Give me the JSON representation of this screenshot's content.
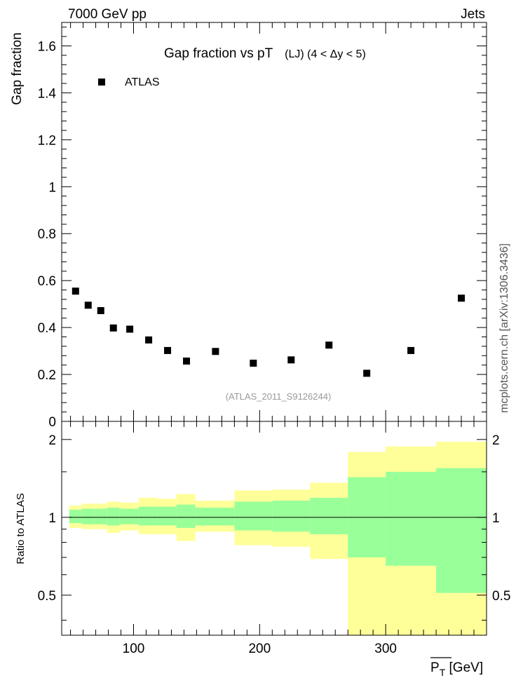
{
  "header": {
    "left_label": "7000 GeV pp",
    "right_label": "Jets"
  },
  "side_label": "mcplots.cern.ch [arXiv:1306.3436]",
  "chart_data": [
    {
      "type": "scatter",
      "title": "Gap fraction vs pT",
      "title_suffix": "(LJ) (4 < Δy < 5)",
      "ylabel": "Gap fraction",
      "ylim": [
        0,
        1.7
      ],
      "yticks": [
        0,
        0.2,
        0.4,
        0.6,
        0.8,
        1,
        1.2,
        1.4,
        1.6
      ],
      "ytick_labels": [
        "0",
        "0.2",
        "0.4",
        "0.6",
        "0.8",
        "1",
        "1.2",
        "1.4",
        "1.6"
      ],
      "xlim": [
        43,
        380
      ],
      "legend": {
        "placement": "top-left",
        "entries": [
          "ATLAS"
        ]
      },
      "watermark": "(ATLAS_2011_S9126244)",
      "series": [
        {
          "name": "ATLAS",
          "marker": "square",
          "color": "#000000",
          "x": [
            54,
            64,
            74,
            84,
            97,
            112,
            127,
            142,
            165,
            195,
            225,
            255,
            285,
            320,
            360
          ],
          "y": [
            0.555,
            0.495,
            0.472,
            0.398,
            0.393,
            0.347,
            0.302,
            0.257,
            0.298,
            0.248,
            0.262,
            0.325,
            0.205,
            0.302,
            0.525
          ]
        }
      ]
    },
    {
      "type": "area",
      "ylabel": "Ratio to ATLAS",
      "xlabel": "P_T [GeV]",
      "xlabel_main": "P",
      "xlabel_sub": "T",
      "xlabel_unit": " [GeV]",
      "xlim": [
        43,
        380
      ],
      "xticks": [
        100,
        200,
        300
      ],
      "xtick_labels": [
        "100",
        "200",
        "300"
      ],
      "ylim": [
        0.35,
        2.35
      ],
      "yticks": [
        0.5,
        1,
        2
      ],
      "ytick_labels": [
        "0.5",
        "1",
        "2"
      ],
      "log_y": true,
      "reference_line": 1,
      "bins": [
        {
          "lo": 49,
          "hi": 59,
          "inner": [
            0.95,
            1.07
          ],
          "outer": [
            0.91,
            1.11
          ]
        },
        {
          "lo": 59,
          "hi": 69,
          "inner": [
            0.94,
            1.08
          ],
          "outer": [
            0.9,
            1.13
          ]
        },
        {
          "lo": 69,
          "hi": 79,
          "inner": [
            0.94,
            1.08
          ],
          "outer": [
            0.9,
            1.13
          ]
        },
        {
          "lo": 79,
          "hi": 89,
          "inner": [
            0.93,
            1.09
          ],
          "outer": [
            0.87,
            1.15
          ]
        },
        {
          "lo": 89,
          "hi": 104,
          "inner": [
            0.94,
            1.08
          ],
          "outer": [
            0.89,
            1.14
          ]
        },
        {
          "lo": 104,
          "hi": 119,
          "inner": [
            0.93,
            1.1
          ],
          "outer": [
            0.86,
            1.19
          ]
        },
        {
          "lo": 119,
          "hi": 134,
          "inner": [
            0.93,
            1.1
          ],
          "outer": [
            0.86,
            1.18
          ]
        },
        {
          "lo": 134,
          "hi": 149,
          "inner": [
            0.91,
            1.12
          ],
          "outer": [
            0.81,
            1.23
          ]
        },
        {
          "lo": 149,
          "hi": 180,
          "inner": [
            0.93,
            1.09
          ],
          "outer": [
            0.88,
            1.16
          ]
        },
        {
          "lo": 180,
          "hi": 210,
          "inner": [
            0.89,
            1.15
          ],
          "outer": [
            0.78,
            1.27
          ]
        },
        {
          "lo": 210,
          "hi": 240,
          "inner": [
            0.88,
            1.16
          ],
          "outer": [
            0.77,
            1.28
          ]
        },
        {
          "lo": 240,
          "hi": 270,
          "inner": [
            0.86,
            1.19
          ],
          "outer": [
            0.69,
            1.36
          ]
        },
        {
          "lo": 270,
          "hi": 300,
          "inner": [
            0.7,
            1.43
          ],
          "outer": [
            0.35,
            1.79
          ]
        },
        {
          "lo": 300,
          "hi": 340,
          "inner": [
            0.65,
            1.5
          ],
          "outer": [
            0.35,
            1.88
          ]
        },
        {
          "lo": 340,
          "hi": 380,
          "inner": [
            0.51,
            1.55
          ],
          "outer": [
            0.35,
            1.96
          ]
        }
      ],
      "colors": {
        "inner": "#99ff99",
        "outer": "#ffff99"
      }
    }
  ]
}
